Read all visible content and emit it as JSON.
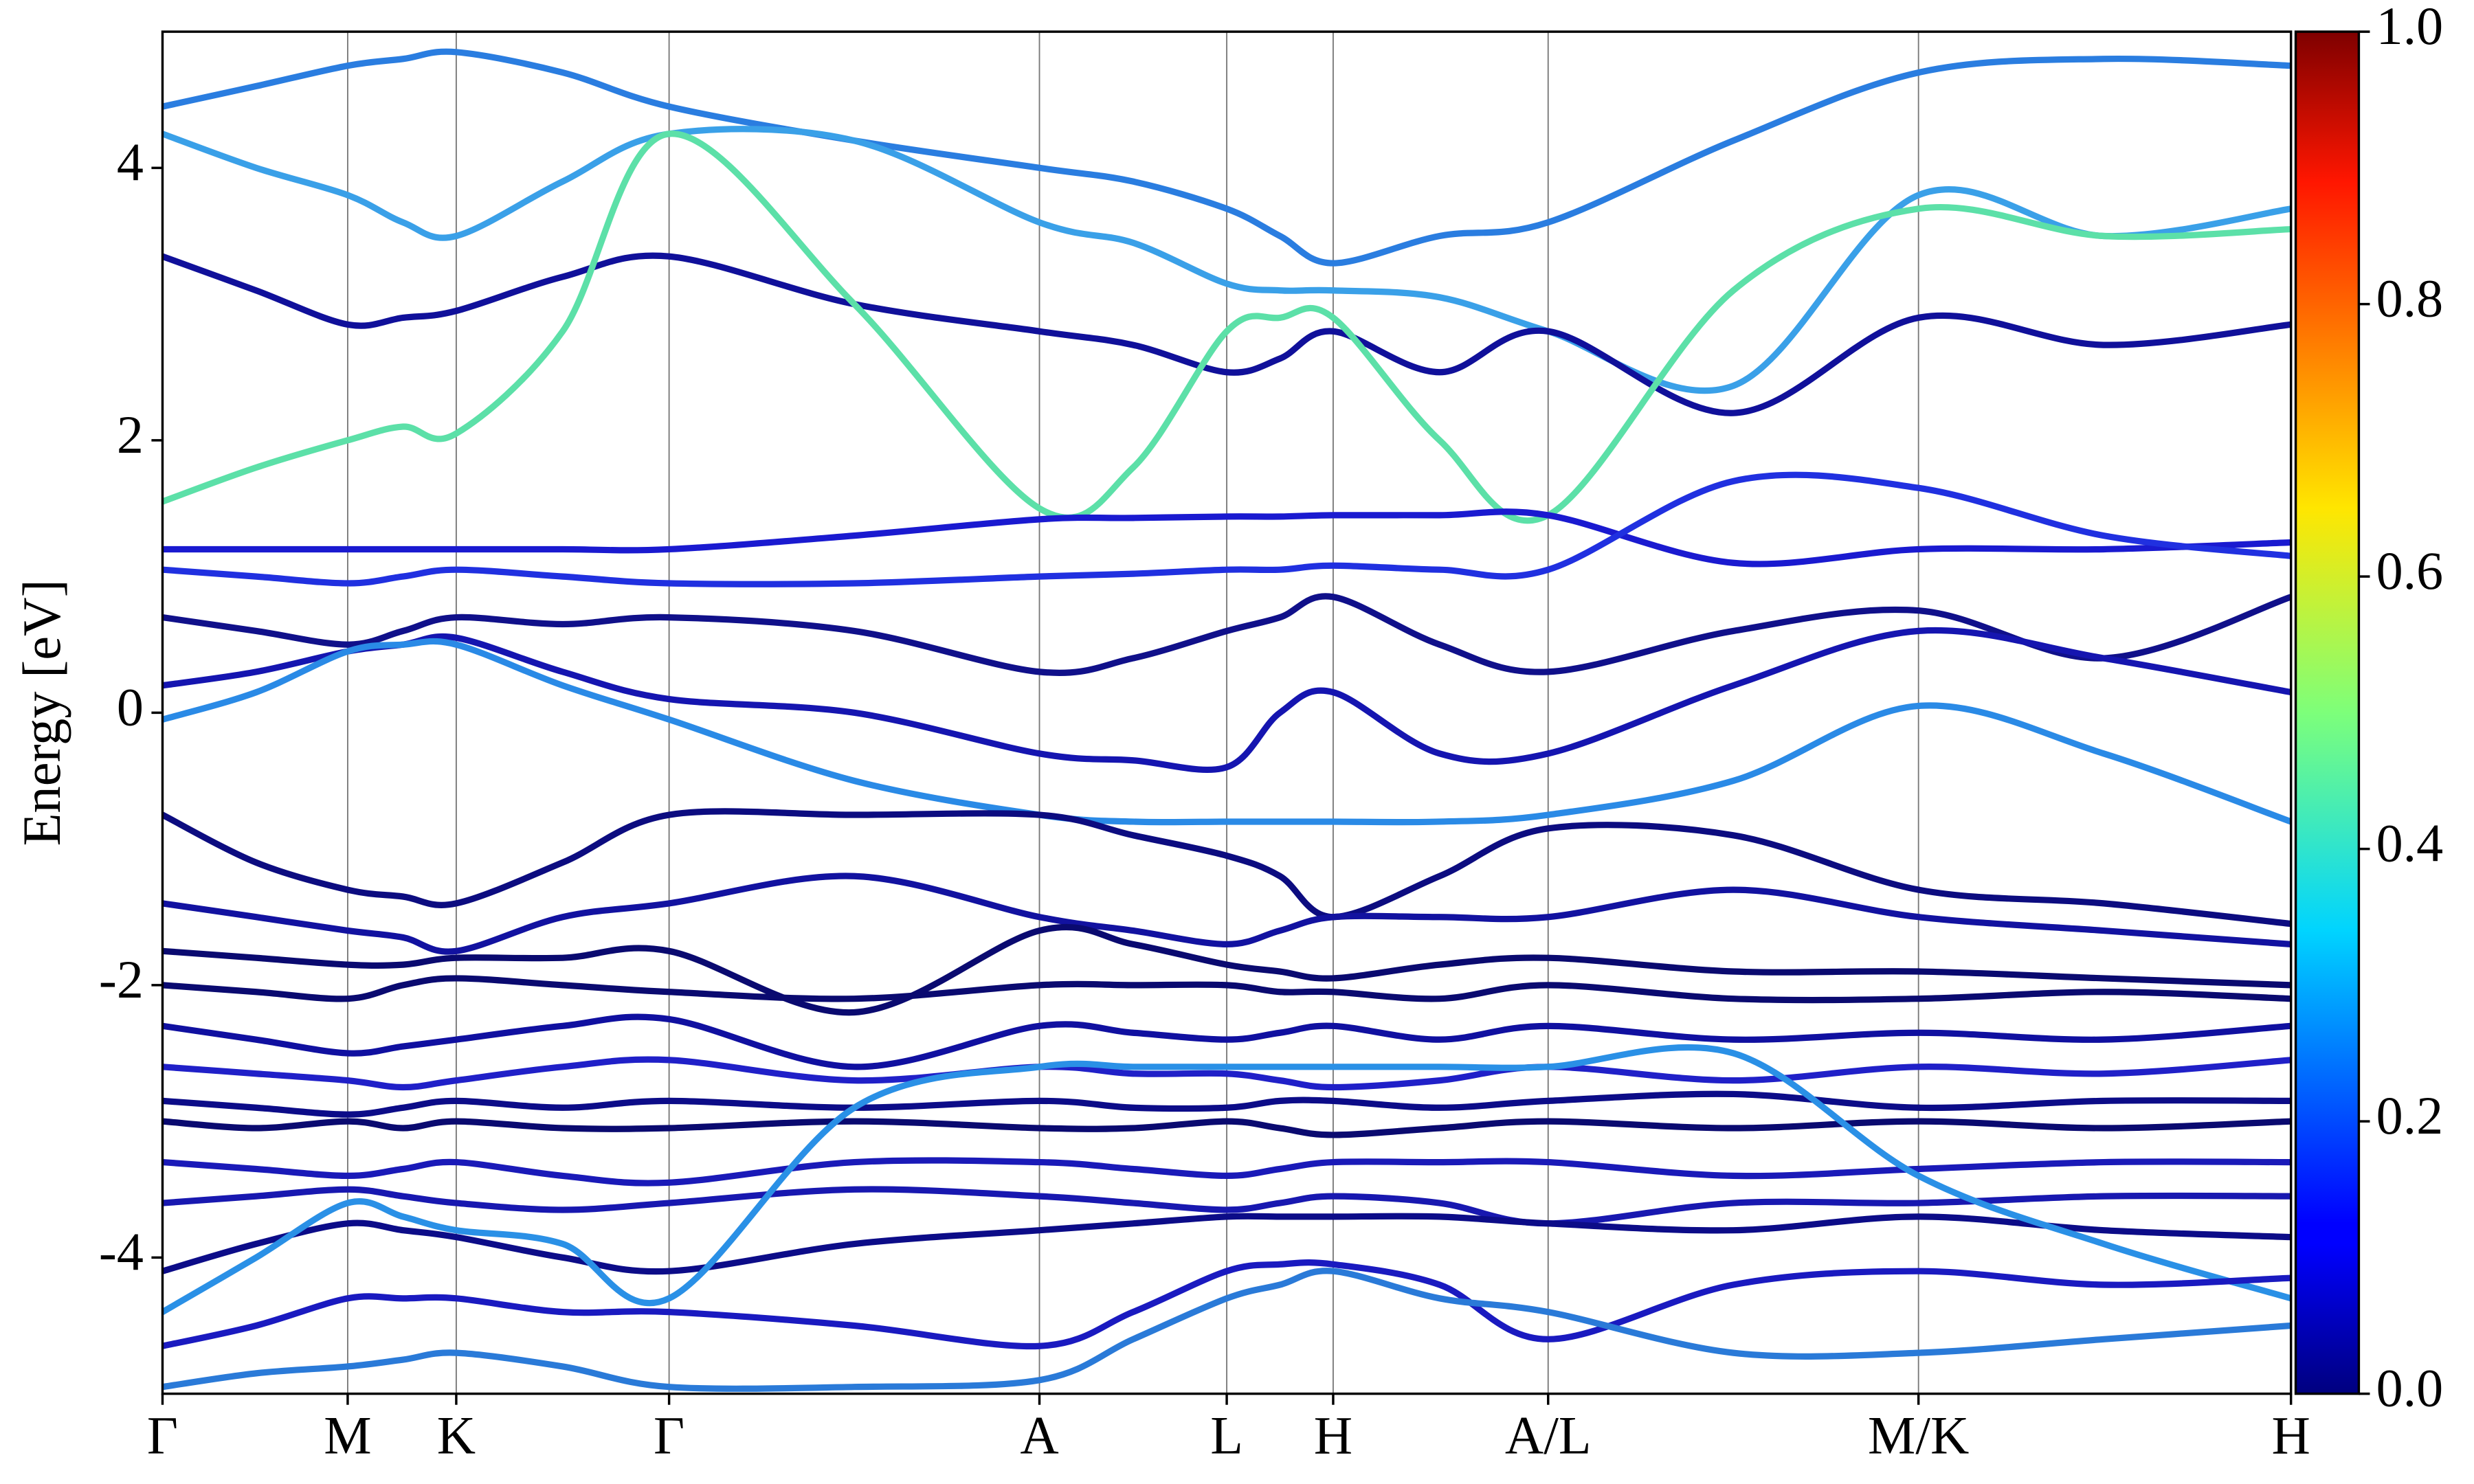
{
  "chart_data": {
    "type": "line",
    "ylabel": "Energy [eV]",
    "ylim": [
      -5,
      5
    ],
    "yticks": [
      -4,
      -2,
      0,
      2,
      4
    ],
    "xlim": [
      0,
      1
    ],
    "xticks": [
      {
        "value": 0,
        "label": "Γ"
      },
      {
        "value": 0.087,
        "label": "M"
      },
      {
        "value": 0.138,
        "label": "K"
      },
      {
        "value": 0.238,
        "label": "Γ"
      },
      {
        "value": 0.412,
        "label": "A"
      },
      {
        "value": 0.5,
        "label": "L"
      },
      {
        "value": 0.55,
        "label": "H"
      },
      {
        "value": 0.651,
        "label": "A/L"
      },
      {
        "value": 0.825,
        "label": "M/K"
      },
      {
        "value": 1.0,
        "label": "H"
      }
    ],
    "grid": true,
    "x": [
      0,
      0.044,
      0.087,
      0.113,
      0.138,
      0.188,
      0.238,
      0.325,
      0.412,
      0.456,
      0.5,
      0.525,
      0.55,
      0.6,
      0.651,
      0.738,
      0.825,
      0.912,
      1.0
    ],
    "series": [
      {
        "color": "#2a7de0",
        "values": [
          4.45,
          4.6,
          4.75,
          4.8,
          4.85,
          4.7,
          4.45,
          4.2,
          4.0,
          3.9,
          3.7,
          3.5,
          3.3,
          3.5,
          3.6,
          4.2,
          4.7,
          4.8,
          4.75
        ]
      },
      {
        "color": "#3aa0e8",
        "values": [
          4.25,
          4.0,
          3.8,
          3.6,
          3.5,
          3.9,
          4.25,
          4.2,
          3.6,
          3.45,
          3.15,
          3.1,
          3.1,
          3.05,
          2.8,
          2.4,
          3.8,
          3.5,
          3.7
        ]
      },
      {
        "color": "#10109a",
        "values": [
          3.35,
          3.1,
          2.85,
          2.9,
          2.95,
          3.2,
          3.35,
          3.0,
          2.8,
          2.7,
          2.5,
          2.6,
          2.8,
          2.5,
          2.8,
          2.2,
          2.9,
          2.7,
          2.85
        ]
      },
      {
        "color": "#5ce0a8",
        "values": [
          1.55,
          1.8,
          2.0,
          2.1,
          2.05,
          2.8,
          4.25,
          3.0,
          1.5,
          1.8,
          2.8,
          2.9,
          2.9,
          2.0,
          1.45,
          3.1,
          3.7,
          3.5,
          3.55
        ]
      },
      {
        "color": "#1a1ad0",
        "values": [
          1.2,
          1.2,
          1.2,
          1.2,
          1.2,
          1.2,
          1.2,
          1.3,
          1.42,
          1.43,
          1.44,
          1.44,
          1.45,
          1.45,
          1.45,
          1.1,
          1.2,
          1.2,
          1.25
        ]
      },
      {
        "color": "#2030e0",
        "values": [
          1.05,
          1.0,
          0.95,
          1.0,
          1.05,
          1.0,
          0.95,
          0.95,
          1.0,
          1.02,
          1.05,
          1.05,
          1.08,
          1.05,
          1.05,
          1.7,
          1.65,
          1.3,
          1.15
        ]
      },
      {
        "color": "#10108a",
        "values": [
          0.7,
          0.6,
          0.5,
          0.6,
          0.7,
          0.65,
          0.7,
          0.6,
          0.3,
          0.4,
          0.6,
          0.7,
          0.85,
          0.5,
          0.3,
          0.6,
          0.75,
          0.4,
          0.85
        ]
      },
      {
        "color": "#1515b0",
        "values": [
          0.2,
          0.3,
          0.45,
          0.5,
          0.55,
          0.3,
          0.1,
          0.0,
          -0.3,
          -0.35,
          -0.4,
          0.0,
          0.15,
          -0.3,
          -0.3,
          0.2,
          0.6,
          0.4,
          0.15
        ]
      },
      {
        "color": "#2a8ae6",
        "values": [
          -0.05,
          0.15,
          0.45,
          0.5,
          0.5,
          0.2,
          -0.05,
          -0.5,
          -0.75,
          -0.8,
          -0.8,
          -0.8,
          -0.8,
          -0.8,
          -0.75,
          -0.5,
          0.05,
          -0.3,
          -0.8
        ]
      },
      {
        "color": "#0c0c80",
        "values": [
          -0.75,
          -1.1,
          -1.3,
          -1.35,
          -1.4,
          -1.1,
          -0.75,
          -0.75,
          -0.75,
          -0.9,
          -1.05,
          -1.2,
          -1.5,
          -1.2,
          -0.85,
          -0.9,
          -1.3,
          -1.4,
          -1.55
        ]
      },
      {
        "color": "#1212a0",
        "values": [
          -1.4,
          -1.5,
          -1.6,
          -1.65,
          -1.75,
          -1.5,
          -1.4,
          -1.2,
          -1.5,
          -1.6,
          -1.7,
          -1.6,
          -1.5,
          -1.5,
          -1.5,
          -1.3,
          -1.5,
          -1.6,
          -1.7
        ]
      },
      {
        "color": "#0a0a70",
        "values": [
          -1.75,
          -1.8,
          -1.85,
          -1.85,
          -1.8,
          -1.8,
          -1.75,
          -2.2,
          -1.6,
          -1.7,
          -1.85,
          -1.9,
          -1.95,
          -1.85,
          -1.8,
          -1.9,
          -1.9,
          -1.95,
          -2.0
        ]
      },
      {
        "color": "#0a0a70",
        "values": [
          -2.0,
          -2.05,
          -2.1,
          -2.0,
          -1.95,
          -2.0,
          -2.05,
          -2.1,
          -2.0,
          -2.0,
          -2.0,
          -2.05,
          -2.05,
          -2.1,
          -2.0,
          -2.1,
          -2.1,
          -2.05,
          -2.1
        ]
      },
      {
        "color": "#1010a0",
        "values": [
          -2.3,
          -2.4,
          -2.5,
          -2.45,
          -2.4,
          -2.3,
          -2.25,
          -2.6,
          -2.3,
          -2.35,
          -2.4,
          -2.35,
          -2.3,
          -2.4,
          -2.3,
          -2.4,
          -2.35,
          -2.4,
          -2.3
        ]
      },
      {
        "color": "#2020c8",
        "values": [
          -2.6,
          -2.65,
          -2.7,
          -2.75,
          -2.7,
          -2.6,
          -2.55,
          -2.7,
          -2.6,
          -2.65,
          -2.65,
          -2.7,
          -2.75,
          -2.7,
          -2.6,
          -2.7,
          -2.6,
          -2.65,
          -2.55
        ]
      },
      {
        "color": "#0c0c88",
        "values": [
          -2.85,
          -2.9,
          -2.95,
          -2.9,
          -2.85,
          -2.9,
          -2.85,
          -2.9,
          -2.85,
          -2.9,
          -2.9,
          -2.85,
          -2.85,
          -2.9,
          -2.85,
          -2.8,
          -2.9,
          -2.85,
          -2.85
        ]
      },
      {
        "color": "#0a0a70",
        "values": [
          -3.0,
          -3.05,
          -3.0,
          -3.05,
          -3.0,
          -3.05,
          -3.05,
          -3.0,
          -3.05,
          -3.05,
          -3.0,
          -3.05,
          -3.1,
          -3.05,
          -3.0,
          -3.05,
          -3.0,
          -3.05,
          -3.0
        ]
      },
      {
        "color": "#1a1ab8",
        "values": [
          -3.3,
          -3.35,
          -3.4,
          -3.35,
          -3.3,
          -3.4,
          -3.45,
          -3.3,
          -3.3,
          -3.35,
          -3.4,
          -3.35,
          -3.3,
          -3.3,
          -3.3,
          -3.4,
          -3.35,
          -3.3,
          -3.3
        ]
      },
      {
        "color": "#1818b0",
        "values": [
          -3.6,
          -3.55,
          -3.5,
          -3.55,
          -3.6,
          -3.65,
          -3.6,
          -3.5,
          -3.55,
          -3.6,
          -3.65,
          -3.6,
          -3.55,
          -3.6,
          -3.75,
          -3.6,
          -3.6,
          -3.55,
          -3.55
        ]
      },
      {
        "color": "#0c0c88",
        "values": [
          -4.1,
          -3.9,
          -3.75,
          -3.8,
          -3.85,
          -4.0,
          -4.1,
          -3.9,
          -3.8,
          -3.75,
          -3.7,
          -3.7,
          -3.7,
          -3.7,
          -3.75,
          -3.8,
          -3.7,
          -3.8,
          -3.85
        ]
      },
      {
        "color": "#2a90e6",
        "values": [
          -4.4,
          -4.0,
          -3.6,
          -3.7,
          -3.8,
          -3.9,
          -4.3,
          -2.9,
          -2.6,
          -2.6,
          -2.6,
          -2.6,
          -2.6,
          -2.6,
          -2.6,
          -2.5,
          -3.4,
          -3.9,
          -4.3
        ]
      },
      {
        "color": "#1a1ac0",
        "values": [
          -4.65,
          -4.5,
          -4.3,
          -4.3,
          -4.3,
          -4.4,
          -4.4,
          -4.5,
          -4.65,
          -4.4,
          -4.1,
          -4.05,
          -4.05,
          -4.2,
          -4.6,
          -4.2,
          -4.1,
          -4.2,
          -4.15
        ]
      },
      {
        "color": "#2a7ad8",
        "values": [
          -4.95,
          -4.85,
          -4.8,
          -4.75,
          -4.7,
          -4.8,
          -4.95,
          -4.95,
          -4.9,
          -4.6,
          -4.3,
          -4.2,
          -4.1,
          -4.3,
          -4.4,
          -4.7,
          -4.7,
          -4.6,
          -4.5
        ]
      }
    ],
    "colorbar": {
      "lim": [
        0,
        1
      ],
      "ticks": [
        {
          "value": 0,
          "label": "0.0"
        },
        {
          "value": 0.2,
          "label": "0.2"
        },
        {
          "value": 0.4,
          "label": "0.4"
        },
        {
          "value": 0.6,
          "label": "0.6"
        },
        {
          "value": 0.8,
          "label": "0.8"
        },
        {
          "value": 1,
          "label": "1.0"
        }
      ]
    }
  }
}
